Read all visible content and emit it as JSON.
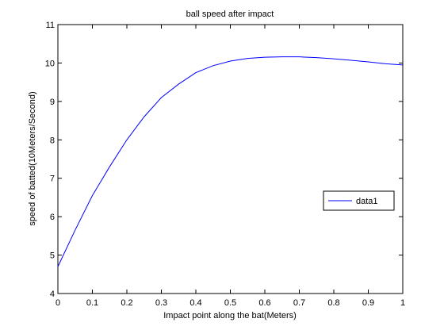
{
  "chart_data": {
    "type": "line",
    "title": "ball speed after impact",
    "xlabel": "Impact point along the bat(Meters)",
    "ylabel": "speed of batted(10Meters/Second)",
    "xlim": [
      0,
      1
    ],
    "ylim": [
      4,
      11
    ],
    "x_ticks": [
      "0",
      "0.1",
      "0.2",
      "0.3",
      "0.4",
      "0.5",
      "0.6",
      "0.7",
      "0.8",
      "0.9",
      "1"
    ],
    "y_ticks": [
      "4",
      "5",
      "6",
      "7",
      "8",
      "9",
      "10",
      "11"
    ],
    "grid": false,
    "legend_position": "right",
    "series": [
      {
        "name": "data1",
        "color": "#0000ff",
        "x": [
          0,
          0.05,
          0.1,
          0.15,
          0.2,
          0.25,
          0.3,
          0.35,
          0.4,
          0.45,
          0.5,
          0.55,
          0.6,
          0.65,
          0.7,
          0.75,
          0.8,
          0.85,
          0.9,
          0.95,
          1
        ],
        "y": [
          4.7,
          5.65,
          6.55,
          7.3,
          8.0,
          8.6,
          9.1,
          9.45,
          9.75,
          9.93,
          10.05,
          10.12,
          10.15,
          10.16,
          10.16,
          10.14,
          10.11,
          10.07,
          10.03,
          9.98,
          9.95
        ]
      }
    ]
  }
}
